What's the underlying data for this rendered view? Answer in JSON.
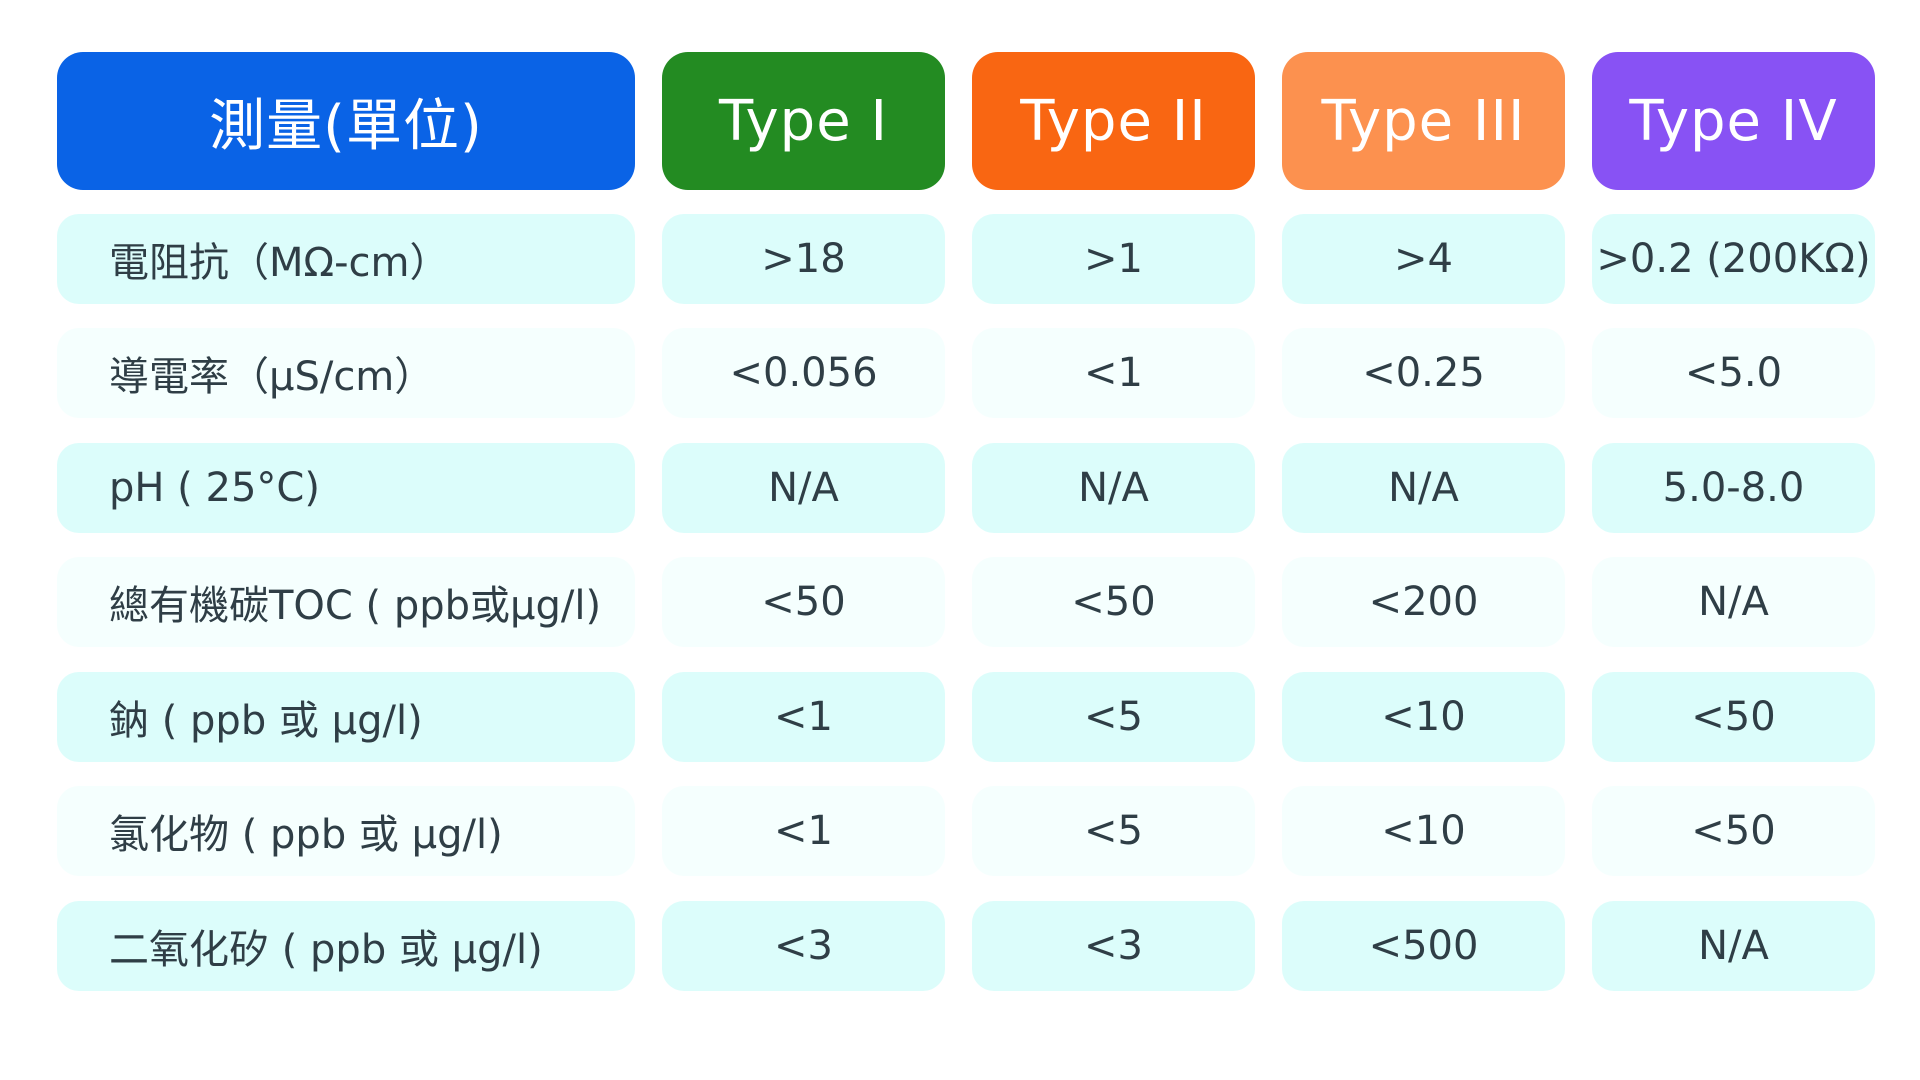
{
  "header": {
    "measure": {
      "label": "測量(單位)",
      "color": "#0a63e6"
    },
    "type1": {
      "label": "Type I",
      "color": "#238b22"
    },
    "type2": {
      "label": "Type II",
      "color": "#f96612"
    },
    "type3": {
      "label": "Type III",
      "color": "#fc914f"
    },
    "type4": {
      "label": "Type IV",
      "color": "#8852f4"
    }
  },
  "colors": {
    "row_strong": "#dcfdfb",
    "row_soft": "#f5fffe",
    "text": "#2f3e46"
  },
  "rows": [
    {
      "label": "電阻抗（MΩ-cm）",
      "type1": ">18",
      "type2": ">1",
      "type3": ">4",
      "type4": ">0.2 (200KΩ)"
    },
    {
      "label": "導電率（μS/cm）",
      "type1": "<0.056",
      "type2": "<1",
      "type3": "<0.25",
      "type4": "<5.0"
    },
    {
      "label": "pH ( 25°C)",
      "type1": "N/A",
      "type2": "N/A",
      "type3": "N/A",
      "type4": "5.0-8.0"
    },
    {
      "label": "總有機碳TOC ( ppb或μg/l)",
      "type1": "<50",
      "type2": "<50",
      "type3": "<200",
      "type4": "N/A"
    },
    {
      "label": "鈉 ( ppb 或 μg/l)",
      "type1": "<1",
      "type2": "<5",
      "type3": "<10",
      "type4": "<50"
    },
    {
      "label": "氯化物 ( ppb 或 μg/l)",
      "type1": "<1",
      "type2": "<5",
      "type3": "<10",
      "type4": "<50"
    },
    {
      "label": "二氧化矽 ( ppb 或 μg/l)",
      "type1": "<3",
      "type2": "<3",
      "type3": "<500",
      "type4": "N/A"
    }
  ]
}
